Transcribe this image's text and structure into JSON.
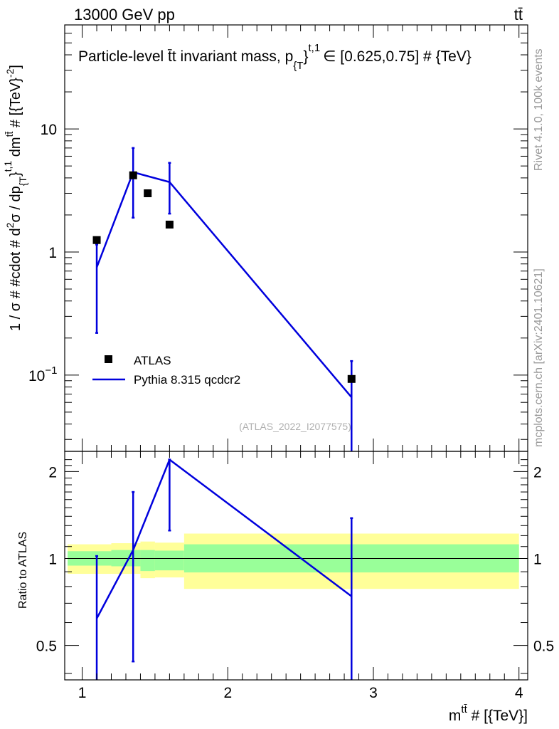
{
  "header": {
    "left": "13000 GeV pp",
    "right": "tt̄"
  },
  "side": {
    "rivet": "Rivet 4.1.0,  100k events",
    "source": "mcplots.cern.ch [arXiv:2401.10621]"
  },
  "colors": {
    "mc": "#0000dd",
    "data": "#000000",
    "band_inner": "#99ff99",
    "band_outer": "#ffff99"
  },
  "chart_data": [
    {
      "type": "scatter",
      "panel": "main",
      "title": "Particle-level t̄t invariant mass, p_{T}^{t,1} ∈ [0.625,0.75] # {TeV}",
      "title_parts": {
        "main": "Particle-level t̄t invariant mass, p",
        "sub": "{T",
        "brace": "}",
        "sup": "t,1",
        "rest": "∈ [0.625,0.75] # {TeV}"
      },
      "ylabel": "1 / σ # #cdot # d²σ / dp_{T}^{t,1} dm^{tt̄} # [{TeV}^{-2}]",
      "ylabel_parts": {
        "a": "1 / σ # #cdot # d",
        "b": "2",
        "c": "σ / dp",
        "d": "{T",
        "e": "}",
        "f": "t,1",
        "g": " dm",
        "h": "tt̄",
        "i": " # [{TeV}",
        "j": "-2",
        "k": "]"
      },
      "yscale": "log",
      "ylim": [
        0.024,
        70
      ],
      "xlim": [
        0.88,
        4.06
      ],
      "y_ticks": [
        {
          "value": 0.1,
          "base": "10",
          "exp": "−1"
        },
        {
          "value": 1,
          "label": "1"
        },
        {
          "value": 10,
          "label": "10"
        }
      ],
      "watermark": "(ATLAS_2022_I2077575)",
      "legend": {
        "position": "middle-left",
        "entries": [
          {
            "name": "ATLAS",
            "kind": "marker"
          },
          {
            "name": "Pythia 8.315 qcdcr2",
            "kind": "line"
          }
        ]
      },
      "series": [
        {
          "name": "ATLAS",
          "kind": "marker",
          "points": [
            {
              "x": 1.1,
              "y": 1.25
            },
            {
              "x": 1.35,
              "y": 4.2
            },
            {
              "x": 1.45,
              "y": 3.0
            },
            {
              "x": 1.6,
              "y": 1.67
            },
            {
              "x": 2.85,
              "y": 0.093
            }
          ]
        },
        {
          "name": "Pythia 8.315 qcdcr2",
          "kind": "line",
          "points": [
            {
              "x": 1.1,
              "y": 0.75,
              "err_lo": 0.22,
              "err_hi": 1.15
            },
            {
              "x": 1.35,
              "y": 4.45,
              "err_lo": 1.9,
              "err_hi": 7.0
            },
            {
              "x": 1.6,
              "y": 3.7,
              "err_lo": 2.05,
              "err_hi": 5.3
            },
            {
              "x": 2.85,
              "y": 0.066,
              "err_lo": 0.001,
              "err_hi": 0.13
            }
          ]
        }
      ]
    },
    {
      "type": "line",
      "panel": "ratio",
      "ylabel": "Ratio to ATLAS",
      "xlabel_parts": {
        "m": "m",
        "sup": "tt̄",
        "rest": " # [{TeV}]"
      },
      "xlim": [
        0.88,
        4.06
      ],
      "ylim": [
        0.38,
        2.35
      ],
      "yscale": "log",
      "x_ticks": [
        1,
        2,
        3,
        4
      ],
      "y_ticks": [
        0.5,
        1,
        2
      ],
      "reference_line": 1,
      "bands": [
        {
          "x0": 0.9,
          "x1": 1.2,
          "inner": [
            0.945,
            1.06
          ],
          "outer": [
            0.885,
            1.12
          ]
        },
        {
          "x0": 1.2,
          "x1": 1.4,
          "inner": [
            0.94,
            1.07
          ],
          "outer": [
            0.885,
            1.13
          ]
        },
        {
          "x0": 1.4,
          "x1": 1.5,
          "inner": [
            0.905,
            1.07
          ],
          "outer": [
            0.855,
            1.145
          ]
        },
        {
          "x0": 1.5,
          "x1": 1.7,
          "inner": [
            0.91,
            1.065
          ],
          "outer": [
            0.86,
            1.135
          ]
        },
        {
          "x0": 1.7,
          "x1": 4.0,
          "inner": [
            0.895,
            1.12
          ],
          "outer": [
            0.785,
            1.22
          ]
        }
      ],
      "series": [
        {
          "name": "Pythia 8.315 qcdcr2",
          "points": [
            {
              "x": 1.1,
              "y": 0.62,
              "err_lo": 0.3,
              "err_hi": 1.02
            },
            {
              "x": 1.35,
              "y": 1.07,
              "err_lo": 0.44,
              "err_hi": 1.7
            },
            {
              "x": 1.6,
              "y": 2.2,
              "err_lo": 1.25,
              "err_hi": 2.2
            },
            {
              "x": 2.85,
              "y": 0.74,
              "err_lo": 0.3,
              "err_hi": 1.38
            }
          ]
        }
      ]
    }
  ]
}
